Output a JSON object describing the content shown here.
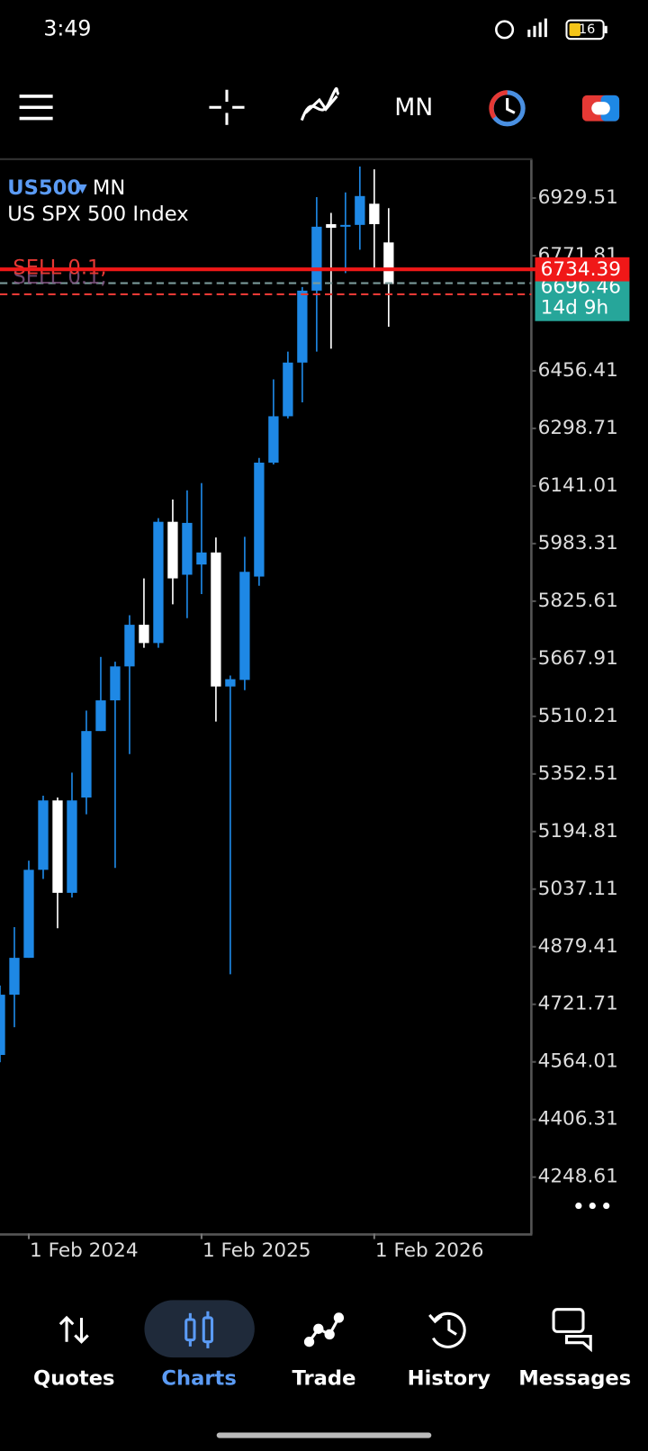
{
  "status_bar": {
    "time": "3:49",
    "battery": "16"
  },
  "toolbar": {
    "timeframe": "MN"
  },
  "chart_data": {
    "type": "candlestick",
    "symbol": "US500",
    "timeframe": "MN",
    "description": "US SPX 500 Index",
    "categories": [
      null,
      null,
      "1 Feb 2024",
      null,
      null,
      null,
      null,
      null,
      null,
      null,
      null,
      null,
      null,
      null,
      "1 Feb 2025",
      null,
      null,
      null,
      null,
      null,
      null,
      null,
      null,
      null,
      null,
      null,
      "1 Feb 2026",
      null
    ],
    "open": [
      4583,
      4748,
      4849,
      5090,
      5280,
      5027,
      5288,
      5470,
      5554,
      5647,
      5761,
      5711,
      6043,
      5898,
      5926,
      5959,
      5592,
      5610,
      5893,
      6205,
      6332,
      6479,
      6676,
      6858,
      6851,
      6856,
      6914,
      6808
    ],
    "high": [
      4773,
      4933,
      5115,
      5293,
      5288,
      5356,
      5526,
      5673,
      5660,
      5787,
      5888,
      6053,
      6104,
      6129,
      6149,
      6000,
      5622,
      6002,
      6218,
      6433,
      6509,
      6686,
      6932,
      6889,
      6945,
      7016,
      7008,
      6902
    ],
    "low": [
      4563,
      4659,
      4849,
      5065,
      4930,
      5014,
      5242,
      5470,
      5095,
      5407,
      5698,
      5698,
      5817,
      5779,
      5845,
      5496,
      4804,
      5582,
      5868,
      6200,
      6326,
      6370,
      6509,
      6517,
      6724,
      6788,
      6737,
      6577
    ],
    "close": [
      4748,
      4849,
      5090,
      5280,
      5027,
      5280,
      5470,
      5554,
      5647,
      5761,
      5711,
      6043,
      5888,
      6040,
      5959,
      5592,
      5612,
      5906,
      6205,
      6332,
      6479,
      6676,
      6851,
      6848,
      6856,
      6935,
      6858,
      6694
    ],
    "up_color": "#1e88e5",
    "down_color": "#ffffff",
    "ylim": [
      4094,
      7036
    ],
    "yticks": [
      4248.61,
      4406.31,
      4564.01,
      4721.71,
      4879.41,
      5037.11,
      5194.81,
      5352.51,
      5510.21,
      5667.91,
      5825.61,
      5983.31,
      6141.01,
      6298.71,
      6456.41,
      6771.81,
      6929.51
    ],
    "bid": 6734.39,
    "ask": 6696.46,
    "countdown": "14d 9h",
    "order_line": 6666,
    "order_label": "SELL 0.1,"
  },
  "nav": {
    "items": [
      "Quotes",
      "Charts",
      "Trade",
      "History",
      "Messages"
    ],
    "active": 1
  }
}
